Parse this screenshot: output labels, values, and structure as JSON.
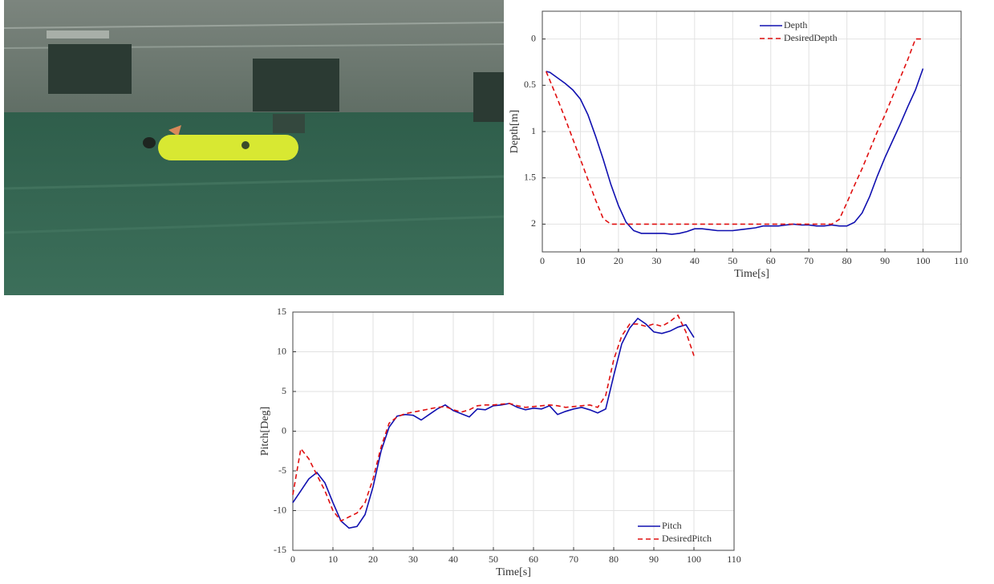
{
  "chart_data": [
    {
      "type": "line",
      "xlabel": "Time[s]",
      "ylabel": "Depth[m]",
      "legend": "upper center",
      "grid": true,
      "xlim": [
        0,
        110
      ],
      "xticks": [
        0,
        10,
        20,
        30,
        40,
        50,
        60,
        70,
        80,
        90,
        100,
        110
      ],
      "ylim": [
        2.3,
        -0.3
      ],
      "yticks": [
        0,
        0.5,
        1,
        1.5,
        2
      ],
      "x": [
        1,
        2,
        4,
        6,
        8,
        10,
        12,
        14,
        16,
        18,
        20,
        22,
        24,
        26,
        28,
        30,
        32,
        34,
        36,
        38,
        40,
        42,
        44,
        46,
        48,
        50,
        52,
        54,
        56,
        58,
        60,
        62,
        64,
        66,
        68,
        70,
        72,
        74,
        76,
        78,
        80,
        82,
        84,
        86,
        88,
        90,
        92,
        94,
        96,
        98,
        100
      ],
      "series": [
        {
          "name": "Depth",
          "color": "#1010b0",
          "linestyle": "solid",
          "values": [
            0.35,
            0.36,
            0.42,
            0.48,
            0.55,
            0.65,
            0.82,
            1.05,
            1.3,
            1.57,
            1.8,
            1.98,
            2.07,
            2.1,
            2.1,
            2.1,
            2.1,
            2.11,
            2.1,
            2.08,
            2.05,
            2.05,
            2.06,
            2.07,
            2.07,
            2.07,
            2.06,
            2.05,
            2.04,
            2.02,
            2.02,
            2.02,
            2.01,
            2.0,
            2.01,
            2.01,
            2.02,
            2.02,
            2.01,
            2.02,
            2.02,
            1.98,
            1.88,
            1.7,
            1.48,
            1.28,
            1.1,
            0.92,
            0.73,
            0.55,
            0.32
          ]
        },
        {
          "name": "DesiredDepth",
          "color": "#e01010",
          "linestyle": "dashed",
          "values": [
            0.35,
            0.45,
            0.65,
            0.86,
            1.08,
            1.3,
            1.52,
            1.74,
            1.94,
            2.0,
            2.0,
            2.0,
            2.0,
            2.0,
            2.0,
            2.0,
            2.0,
            2.0,
            2.0,
            2.0,
            2.0,
            2.0,
            2.0,
            2.0,
            2.0,
            2.0,
            2.0,
            2.0,
            2.0,
            2.0,
            2.0,
            2.0,
            2.0,
            2.0,
            2.0,
            2.0,
            2.0,
            2.0,
            2.0,
            1.95,
            1.77,
            1.58,
            1.4,
            1.2,
            1.0,
            0.82,
            0.62,
            0.42,
            0.22,
            0.0,
            0.0
          ]
        }
      ]
    },
    {
      "type": "line",
      "xlabel": "Time[s]",
      "ylabel": "Pitch[Deg]",
      "legend": "lower right",
      "grid": true,
      "xlim": [
        0,
        110
      ],
      "xticks": [
        0,
        10,
        20,
        30,
        40,
        50,
        60,
        70,
        80,
        90,
        100,
        110
      ],
      "ylim": [
        -15,
        15
      ],
      "yticks": [
        -15,
        -10,
        -5,
        0,
        5,
        10,
        15
      ],
      "x": [
        0,
        2,
        4,
        6,
        8,
        10,
        12,
        14,
        16,
        18,
        20,
        22,
        24,
        26,
        28,
        30,
        32,
        34,
        36,
        38,
        40,
        42,
        44,
        46,
        48,
        50,
        52,
        54,
        56,
        58,
        60,
        62,
        64,
        66,
        68,
        70,
        72,
        74,
        76,
        78,
        80,
        82,
        84,
        86,
        88,
        90,
        92,
        94,
        96,
        98,
        100
      ],
      "series": [
        {
          "name": "Pitch",
          "color": "#1010b0",
          "linestyle": "solid",
          "values": [
            -9,
            -7.5,
            -6,
            -5.2,
            -6.5,
            -9,
            -11.3,
            -12.2,
            -12,
            -10.5,
            -7,
            -2.5,
            0.5,
            1.9,
            2.1,
            2.0,
            1.4,
            2.1,
            2.8,
            3.3,
            2.6,
            2.2,
            1.8,
            2.8,
            2.7,
            3.2,
            3.3,
            3.5,
            3.0,
            2.7,
            2.9,
            2.8,
            3.2,
            2.1,
            2.5,
            2.8,
            3.0,
            2.7,
            2.3,
            2.8,
            7,
            11,
            13,
            14.2,
            13.5,
            12.5,
            12.3,
            12.6,
            13.1,
            13.4,
            11.8
          ]
        },
        {
          "name": "DesiredPitch",
          "color": "#e01010",
          "linestyle": "dashed",
          "values": [
            -8,
            -2.2,
            -3.5,
            -5.5,
            -7.5,
            -10,
            -11.3,
            -10.8,
            -10.3,
            -9,
            -6,
            -2,
            1,
            1.8,
            2.2,
            2.4,
            2.6,
            2.8,
            3.0,
            3.1,
            2.7,
            2.4,
            2.7,
            3.2,
            3.3,
            3.3,
            3.4,
            3.5,
            3.2,
            3.0,
            3.1,
            3.2,
            3.3,
            3.2,
            3.0,
            3.1,
            3.2,
            3.3,
            3.0,
            4.5,
            9,
            12,
            13.5,
            13.5,
            13.2,
            13.5,
            13.2,
            13.8,
            14.6,
            12.5,
            9.5
          ]
        }
      ]
    }
  ]
}
